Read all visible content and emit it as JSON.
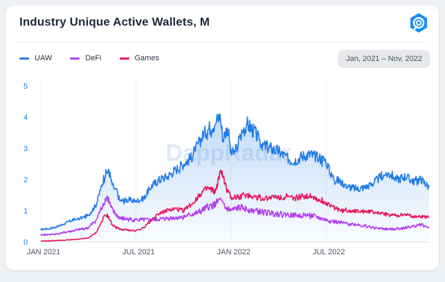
{
  "header": {
    "title": "Industry Unique Active Wallets, M"
  },
  "date_range": "Jan, 2021 – Nov, 2022",
  "watermark": "DappRadar",
  "colors": {
    "uaw": "#1f7ae6",
    "defi": "#b13cf0",
    "games": "#e8145a"
  },
  "chart_data": {
    "type": "line",
    "title": "Industry Unique Active Wallets, M",
    "xlabel": "",
    "ylabel": "",
    "ylim": [
      0,
      5
    ],
    "yticks": [
      "0",
      "1",
      "2",
      "3",
      "4",
      "5"
    ],
    "xticks": [
      {
        "label": "JAN 2021",
        "x": 0
      },
      {
        "label": "JUL 2021",
        "x": 6
      },
      {
        "label": "JAN 2022",
        "x": 12
      },
      {
        "label": "JUL 2022",
        "x": 18
      }
    ],
    "x_range": [
      0,
      24.5
    ],
    "x_unit": "months since Jan 2021",
    "series": [
      {
        "name": "UAW",
        "color": "#1f7ae6",
        "points": [
          [
            0,
            0.4
          ],
          [
            0.5,
            0.42
          ],
          [
            1,
            0.48
          ],
          [
            1.5,
            0.58
          ],
          [
            2,
            0.7
          ],
          [
            2.5,
            0.75
          ],
          [
            3,
            0.85
          ],
          [
            3.5,
            1.2
          ],
          [
            4,
            2.1
          ],
          [
            4.3,
            2.3
          ],
          [
            4.5,
            1.8
          ],
          [
            4.8,
            1.6
          ],
          [
            5,
            1.3
          ],
          [
            5.5,
            1.35
          ],
          [
            6,
            1.3
          ],
          [
            6.5,
            1.4
          ],
          [
            7,
            1.8
          ],
          [
            7.5,
            2.0
          ],
          [
            8,
            2.1
          ],
          [
            8.5,
            2.3
          ],
          [
            9,
            2.5
          ],
          [
            9.5,
            2.7
          ],
          [
            10,
            3.2
          ],
          [
            10.5,
            3.6
          ],
          [
            11,
            3.8
          ],
          [
            11.3,
            4.05
          ],
          [
            11.5,
            3.3
          ],
          [
            11.8,
            3.7
          ],
          [
            12,
            2.8
          ],
          [
            12.3,
            2.9
          ],
          [
            12.6,
            3.4
          ],
          [
            13,
            3.8
          ],
          [
            13.5,
            3.5
          ],
          [
            14,
            3.1
          ],
          [
            14.5,
            3.0
          ],
          [
            15,
            2.9
          ],
          [
            15.5,
            2.7
          ],
          [
            16,
            2.6
          ],
          [
            16.5,
            2.75
          ],
          [
            17,
            2.8
          ],
          [
            17.5,
            2.7
          ],
          [
            18,
            2.6
          ],
          [
            18.3,
            2.15
          ],
          [
            18.6,
            2.0
          ],
          [
            19,
            1.9
          ],
          [
            19.5,
            1.75
          ],
          [
            20,
            1.7
          ],
          [
            20.5,
            1.75
          ],
          [
            21,
            1.9
          ],
          [
            21.5,
            2.1
          ],
          [
            22,
            2.2
          ],
          [
            22.5,
            2.0
          ],
          [
            23,
            2.1
          ],
          [
            23.5,
            1.95
          ],
          [
            24,
            2.0
          ],
          [
            24.5,
            1.75
          ]
        ]
      },
      {
        "name": "DeFi",
        "color": "#b13cf0",
        "points": [
          [
            0,
            0.22
          ],
          [
            1,
            0.25
          ],
          [
            2,
            0.35
          ],
          [
            3,
            0.45
          ],
          [
            3.5,
            0.7
          ],
          [
            4,
            1.3
          ],
          [
            4.2,
            1.45
          ],
          [
            4.5,
            1.0
          ],
          [
            5,
            0.75
          ],
          [
            6,
            0.7
          ],
          [
            7,
            0.7
          ],
          [
            8,
            0.75
          ],
          [
            9,
            0.8
          ],
          [
            10,
            0.95
          ],
          [
            10.5,
            1.1
          ],
          [
            11,
            1.2
          ],
          [
            11.3,
            1.35
          ],
          [
            11.6,
            1.1
          ],
          [
            12,
            1.0
          ],
          [
            12.5,
            1.1
          ],
          [
            13,
            1.05
          ],
          [
            14,
            0.95
          ],
          [
            15,
            0.9
          ],
          [
            16,
            0.85
          ],
          [
            17,
            0.85
          ],
          [
            18,
            0.7
          ],
          [
            19,
            0.6
          ],
          [
            20,
            0.55
          ],
          [
            21,
            0.45
          ],
          [
            22,
            0.4
          ],
          [
            23,
            0.45
          ],
          [
            24,
            0.55
          ],
          [
            24.5,
            0.45
          ]
        ]
      },
      {
        "name": "Games",
        "color": "#e8145a",
        "points": [
          [
            0,
            0.02
          ],
          [
            1,
            0.04
          ],
          [
            2,
            0.07
          ],
          [
            3,
            0.12
          ],
          [
            3.5,
            0.3
          ],
          [
            4,
            0.8
          ],
          [
            4.2,
            0.85
          ],
          [
            4.5,
            0.55
          ],
          [
            5,
            0.4
          ],
          [
            6,
            0.35
          ],
          [
            6.5,
            0.45
          ],
          [
            7,
            0.7
          ],
          [
            7.5,
            0.95
          ],
          [
            8,
            1.0
          ],
          [
            8.5,
            1.05
          ],
          [
            9,
            1.0
          ],
          [
            9.5,
            1.2
          ],
          [
            10,
            1.5
          ],
          [
            10.5,
            1.7
          ],
          [
            11,
            1.6
          ],
          [
            11.4,
            2.3
          ],
          [
            11.7,
            1.7
          ],
          [
            12,
            1.4
          ],
          [
            12.5,
            1.45
          ],
          [
            13,
            1.5
          ],
          [
            14,
            1.4
          ],
          [
            15,
            1.45
          ],
          [
            16,
            1.4
          ],
          [
            17,
            1.5
          ],
          [
            17.5,
            1.35
          ],
          [
            18,
            1.25
          ],
          [
            18.5,
            1.1
          ],
          [
            19,
            1.0
          ],
          [
            20,
            1.0
          ],
          [
            21,
            0.95
          ],
          [
            22,
            0.85
          ],
          [
            23,
            0.85
          ],
          [
            24,
            0.8
          ],
          [
            24.5,
            0.8
          ]
        ]
      }
    ],
    "legend": [
      "UAW",
      "DeFi",
      "Games"
    ],
    "legend_position": "top-left"
  }
}
